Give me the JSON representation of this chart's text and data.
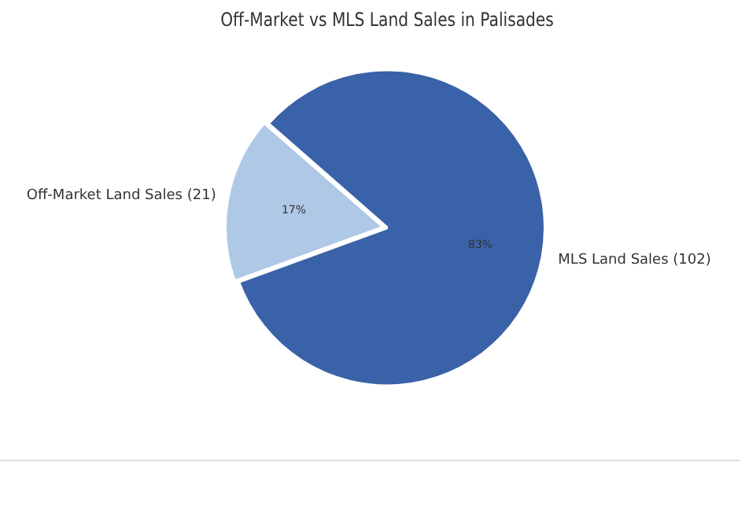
{
  "chart_data": {
    "type": "pie",
    "title": "Off-Market vs MLS Land Sales in Palisades",
    "categories": [
      "Off-Market Land Sales (21)",
      "MLS Land Sales (102)"
    ],
    "values": [
      17,
      83
    ],
    "colors": [
      "#aec8e6",
      "#3a62a8"
    ],
    "value_labels": [
      "17%",
      "83%"
    ]
  }
}
